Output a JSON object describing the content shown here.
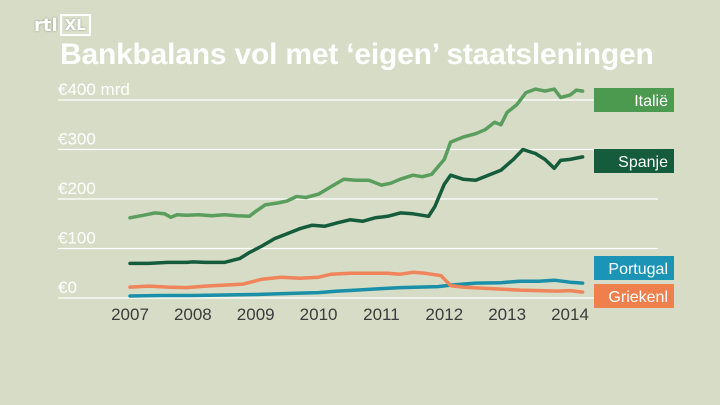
{
  "channel": {
    "logo_left": "rtl",
    "logo_right": "XL"
  },
  "chart_data": {
    "type": "line",
    "title": "Bankbalans vol met ‘eigen’ staatsleningen",
    "xlabel": "",
    "ylabel": "",
    "ylim": [
      0,
      400
    ],
    "xlim": [
      2007.0,
      2014.2
    ],
    "y_ticks": [
      {
        "value": 400,
        "label": "€400 mrd"
      },
      {
        "value": 300,
        "label": "€300"
      },
      {
        "value": 200,
        "label": "€200"
      },
      {
        "value": 100,
        "label": "€100"
      },
      {
        "value": 0,
        "label": "€0"
      }
    ],
    "x_ticks": [
      {
        "value": 2007,
        "label": "2007"
      },
      {
        "value": 2008,
        "label": "2008"
      },
      {
        "value": 2009,
        "label": "2009"
      },
      {
        "value": 2010,
        "label": "2010"
      },
      {
        "value": 2011,
        "label": "2011"
      },
      {
        "value": 2012,
        "label": "2012"
      },
      {
        "value": 2013,
        "label": "2013"
      },
      {
        "value": 2014,
        "label": "2014"
      }
    ],
    "grid": true,
    "legend": "right, labels at line ends",
    "series": [
      {
        "name": "Italië",
        "color": "#5a9e5e",
        "label_color": "#4c9a50",
        "points": [
          [
            2007.0,
            162
          ],
          [
            2007.25,
            168
          ],
          [
            2007.4,
            172
          ],
          [
            2007.55,
            170
          ],
          [
            2007.65,
            163
          ],
          [
            2007.75,
            168
          ],
          [
            2007.9,
            167
          ],
          [
            2008.1,
            168
          ],
          [
            2008.3,
            166
          ],
          [
            2008.5,
            168
          ],
          [
            2008.7,
            166
          ],
          [
            2008.9,
            165
          ],
          [
            2009.0,
            175
          ],
          [
            2009.15,
            188
          ],
          [
            2009.35,
            192
          ],
          [
            2009.5,
            196
          ],
          [
            2009.65,
            205
          ],
          [
            2009.8,
            203
          ],
          [
            2010.0,
            210
          ],
          [
            2010.2,
            225
          ],
          [
            2010.4,
            240
          ],
          [
            2010.6,
            238
          ],
          [
            2010.8,
            238
          ],
          [
            2011.0,
            228
          ],
          [
            2011.15,
            232
          ],
          [
            2011.3,
            240
          ],
          [
            2011.5,
            248
          ],
          [
            2011.65,
            245
          ],
          [
            2011.8,
            250
          ],
          [
            2012.0,
            280
          ],
          [
            2012.1,
            315
          ],
          [
            2012.3,
            325
          ],
          [
            2012.5,
            332
          ],
          [
            2012.65,
            340
          ],
          [
            2012.8,
            355
          ],
          [
            2012.9,
            350
          ],
          [
            2013.0,
            375
          ],
          [
            2013.15,
            390
          ],
          [
            2013.3,
            415
          ],
          [
            2013.45,
            422
          ],
          [
            2013.6,
            418
          ],
          [
            2013.75,
            422
          ],
          [
            2013.85,
            405
          ],
          [
            2014.0,
            410
          ],
          [
            2014.1,
            420
          ],
          [
            2014.2,
            418
          ]
        ]
      },
      {
        "name": "Spanje",
        "color": "#155c3c",
        "label_color": "#155c3c",
        "points": [
          [
            2007.0,
            70
          ],
          [
            2007.3,
            70
          ],
          [
            2007.6,
            72
          ],
          [
            2007.9,
            72
          ],
          [
            2008.0,
            73
          ],
          [
            2008.2,
            72
          ],
          [
            2008.5,
            72
          ],
          [
            2008.75,
            80
          ],
          [
            2008.9,
            92
          ],
          [
            2009.1,
            105
          ],
          [
            2009.3,
            120
          ],
          [
            2009.5,
            130
          ],
          [
            2009.7,
            140
          ],
          [
            2009.9,
            147
          ],
          [
            2010.1,
            145
          ],
          [
            2010.3,
            152
          ],
          [
            2010.5,
            158
          ],
          [
            2010.7,
            155
          ],
          [
            2010.9,
            162
          ],
          [
            2011.1,
            165
          ],
          [
            2011.3,
            172
          ],
          [
            2011.5,
            170
          ],
          [
            2011.75,
            165
          ],
          [
            2011.85,
            185
          ],
          [
            2012.0,
            230
          ],
          [
            2012.1,
            248
          ],
          [
            2012.3,
            240
          ],
          [
            2012.5,
            238
          ],
          [
            2012.7,
            248
          ],
          [
            2012.9,
            258
          ],
          [
            2013.1,
            280
          ],
          [
            2013.25,
            300
          ],
          [
            2013.45,
            292
          ],
          [
            2013.6,
            280
          ],
          [
            2013.75,
            262
          ],
          [
            2013.85,
            278
          ],
          [
            2014.0,
            280
          ],
          [
            2014.2,
            285
          ]
        ]
      },
      {
        "name": "Portugal",
        "color": "#1a8fa8",
        "label_color": "#1b94b6",
        "points": [
          [
            2007.0,
            4
          ],
          [
            2007.5,
            5
          ],
          [
            2008.0,
            5
          ],
          [
            2008.5,
            6
          ],
          [
            2009.0,
            7
          ],
          [
            2009.5,
            9
          ],
          [
            2010.0,
            11
          ],
          [
            2010.3,
            14
          ],
          [
            2010.6,
            16
          ],
          [
            2011.0,
            19
          ],
          [
            2011.3,
            21
          ],
          [
            2011.6,
            22
          ],
          [
            2011.9,
            23
          ],
          [
            2012.1,
            26
          ],
          [
            2012.5,
            30
          ],
          [
            2012.9,
            31
          ],
          [
            2013.2,
            34
          ],
          [
            2013.5,
            34
          ],
          [
            2013.75,
            36
          ],
          [
            2014.0,
            32
          ],
          [
            2014.2,
            30
          ]
        ]
      },
      {
        "name": "Griekenl",
        "color": "#f0845a",
        "label_color": "#f07f4e",
        "points": [
          [
            2007.0,
            22
          ],
          [
            2007.3,
            24
          ],
          [
            2007.6,
            22
          ],
          [
            2007.9,
            21
          ],
          [
            2008.2,
            24
          ],
          [
            2008.5,
            26
          ],
          [
            2008.8,
            28
          ],
          [
            2009.1,
            38
          ],
          [
            2009.4,
            42
          ],
          [
            2009.7,
            40
          ],
          [
            2010.0,
            42
          ],
          [
            2010.2,
            48
          ],
          [
            2010.5,
            50
          ],
          [
            2010.8,
            50
          ],
          [
            2011.1,
            50
          ],
          [
            2011.3,
            48
          ],
          [
            2011.5,
            52
          ],
          [
            2011.7,
            50
          ],
          [
            2011.95,
            45
          ],
          [
            2012.1,
            25
          ],
          [
            2012.3,
            22
          ],
          [
            2012.6,
            20
          ],
          [
            2012.9,
            18
          ],
          [
            2013.2,
            16
          ],
          [
            2013.5,
            15
          ],
          [
            2013.8,
            14
          ],
          [
            2014.0,
            15
          ],
          [
            2014.2,
            12
          ]
        ]
      }
    ]
  }
}
